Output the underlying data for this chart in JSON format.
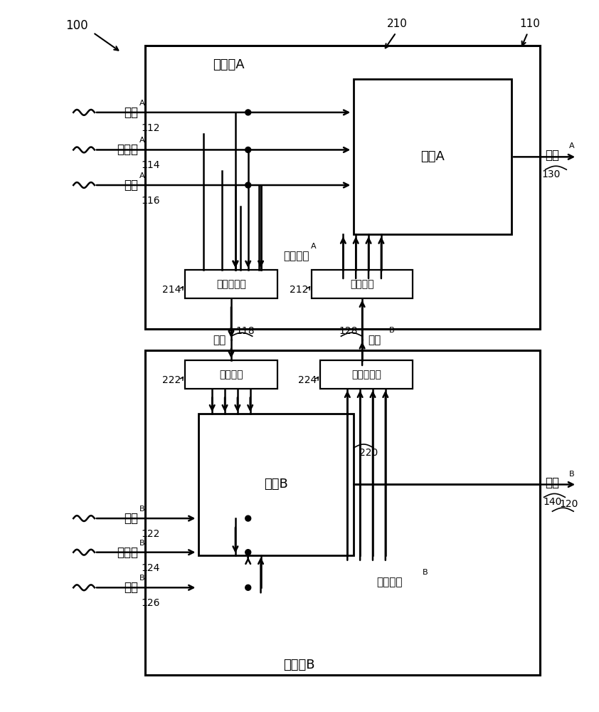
{
  "bg_color": "#ffffff",
  "lc": "#000000",
  "lw": 1.8,
  "fig_w": 8.42,
  "fig_h": 10.0,
  "label_100": "100",
  "label_110": "110",
  "label_112": "112",
  "label_114": "114",
  "label_116": "116",
  "label_118": "118",
  "label_120": "120",
  "label_122": "122",
  "label_124": "124",
  "label_126": "126",
  "label_128": "128",
  "label_130": "130",
  "label_140": "140",
  "label_210": "210",
  "label_212": "212",
  "label_214": "214",
  "label_220": "220",
  "label_222": "222",
  "label_224": "224",
  "ctrl_a": "控制器A",
  "ctrl_b": "控制器B",
  "proc_a": "过程A",
  "proc_b": "过程B",
  "mux_a": "多路复用器",
  "demux_a": "解复用器",
  "mux_b": "多路复用器",
  "demux_b": "解复用器",
  "int_a": "积分状态A",
  "int_b": "积分状态B",
  "ctrl_out_a": "控制A",
  "ctrl_out_b": "控制B",
  "sig_a": "信号A",
  "sig_b": "信号B",
  "cmd_a": "指令A",
  "meas_a": "测量値A",
  "other_a": "其它A",
  "cmd_b": "指令B",
  "meas_b": "测量値B",
  "other_b": "其它B"
}
